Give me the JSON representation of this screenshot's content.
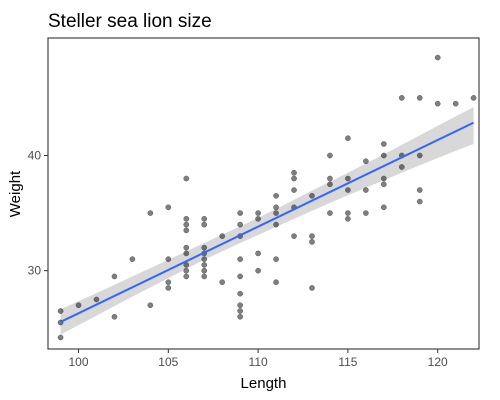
{
  "chart_data": {
    "type": "scatter",
    "title": "Steller sea lion size",
    "xlabel": "Length",
    "ylabel": "Weight",
    "xlim": [
      98.3,
      122.3
    ],
    "ylim": [
      23.2,
      50.2
    ],
    "xticks": [
      100,
      105,
      110,
      115,
      120
    ],
    "yticks": [
      30,
      40
    ],
    "grid": false,
    "points_color": "#000000",
    "points_opacity": 0.5,
    "trend_color": "#3366ff",
    "band_color": "#bebebe",
    "trend": {
      "x": [
        99,
        122
      ],
      "y": [
        25.55,
        42.85
      ]
    },
    "band": {
      "x": [
        99,
        101,
        103,
        105,
        107,
        109,
        110,
        111,
        113,
        115,
        117,
        119,
        121,
        122
      ],
      "lower": [
        24.45,
        26.1,
        27.75,
        29.35,
        30.95,
        32.4,
        33.1,
        33.8,
        35.2,
        36.55,
        37.85,
        39.15,
        40.4,
        41.0
      ],
      "upper": [
        26.65,
        28.05,
        29.5,
        30.95,
        32.4,
        33.85,
        34.6,
        35.35,
        36.95,
        38.5,
        40.1,
        41.75,
        43.4,
        44.2
      ]
    },
    "points": [
      {
        "x": 99,
        "y": 24.2
      },
      {
        "x": 99,
        "y": 25.5
      },
      {
        "x": 99,
        "y": 26.5
      },
      {
        "x": 100,
        "y": 27.0
      },
      {
        "x": 101,
        "y": 27.5
      },
      {
        "x": 102,
        "y": 26.0
      },
      {
        "x": 102,
        "y": 29.5
      },
      {
        "x": 103,
        "y": 31.0
      },
      {
        "x": 104,
        "y": 27.0
      },
      {
        "x": 104,
        "y": 35.0
      },
      {
        "x": 105,
        "y": 28.5
      },
      {
        "x": 105,
        "y": 29.0
      },
      {
        "x": 105,
        "y": 31.0
      },
      {
        "x": 105,
        "y": 35.5
      },
      {
        "x": 106,
        "y": 29.5
      },
      {
        "x": 106,
        "y": 30.0
      },
      {
        "x": 106,
        "y": 30.5
      },
      {
        "x": 106,
        "y": 31.5
      },
      {
        "x": 106,
        "y": 32.0
      },
      {
        "x": 106,
        "y": 33.5
      },
      {
        "x": 106,
        "y": 34.0
      },
      {
        "x": 106,
        "y": 34.5
      },
      {
        "x": 106,
        "y": 38.0
      },
      {
        "x": 107,
        "y": 29.5
      },
      {
        "x": 107,
        "y": 30.0
      },
      {
        "x": 107,
        "y": 30.5
      },
      {
        "x": 107,
        "y": 31.0
      },
      {
        "x": 107,
        "y": 31.5
      },
      {
        "x": 107,
        "y": 32.0
      },
      {
        "x": 107,
        "y": 34.0
      },
      {
        "x": 107,
        "y": 34.5
      },
      {
        "x": 108,
        "y": 29.0
      },
      {
        "x": 108,
        "y": 33.0
      },
      {
        "x": 109,
        "y": 26.0
      },
      {
        "x": 109,
        "y": 26.5
      },
      {
        "x": 109,
        "y": 27.0
      },
      {
        "x": 109,
        "y": 28.0
      },
      {
        "x": 109,
        "y": 29.5
      },
      {
        "x": 109,
        "y": 31.0
      },
      {
        "x": 109,
        "y": 33.0
      },
      {
        "x": 109,
        "y": 34.0
      },
      {
        "x": 109,
        "y": 35.0
      },
      {
        "x": 110,
        "y": 30.0
      },
      {
        "x": 110,
        "y": 31.5
      },
      {
        "x": 110,
        "y": 34.5
      },
      {
        "x": 110,
        "y": 35.0
      },
      {
        "x": 111,
        "y": 29.0
      },
      {
        "x": 111,
        "y": 31.0
      },
      {
        "x": 111,
        "y": 34.0
      },
      {
        "x": 111,
        "y": 35.0
      },
      {
        "x": 111,
        "y": 35.5
      },
      {
        "x": 111,
        "y": 36.5
      },
      {
        "x": 112,
        "y": 33.0
      },
      {
        "x": 112,
        "y": 35.5
      },
      {
        "x": 112,
        "y": 37.0
      },
      {
        "x": 112,
        "y": 38.0
      },
      {
        "x": 112,
        "y": 38.5
      },
      {
        "x": 113,
        "y": 28.5
      },
      {
        "x": 113,
        "y": 32.5
      },
      {
        "x": 113,
        "y": 33.0
      },
      {
        "x": 113,
        "y": 36.5
      },
      {
        "x": 114,
        "y": 35.0
      },
      {
        "x": 114,
        "y": 37.5
      },
      {
        "x": 114,
        "y": 38.0
      },
      {
        "x": 114,
        "y": 40.0
      },
      {
        "x": 115,
        "y": 34.5
      },
      {
        "x": 115,
        "y": 35.0
      },
      {
        "x": 115,
        "y": 37.0
      },
      {
        "x": 115,
        "y": 38.0
      },
      {
        "x": 115,
        "y": 41.5
      },
      {
        "x": 116,
        "y": 35.0
      },
      {
        "x": 116,
        "y": 37.0
      },
      {
        "x": 116,
        "y": 39.5
      },
      {
        "x": 117,
        "y": 35.5
      },
      {
        "x": 117,
        "y": 37.5
      },
      {
        "x": 117,
        "y": 38.0
      },
      {
        "x": 117,
        "y": 40.0
      },
      {
        "x": 117,
        "y": 41.0
      },
      {
        "x": 118,
        "y": 39.0
      },
      {
        "x": 118,
        "y": 40.0
      },
      {
        "x": 118,
        "y": 45.0
      },
      {
        "x": 119,
        "y": 36.0
      },
      {
        "x": 119,
        "y": 37.0
      },
      {
        "x": 119,
        "y": 40.0
      },
      {
        "x": 119,
        "y": 45.0
      },
      {
        "x": 120,
        "y": 44.5
      },
      {
        "x": 120,
        "y": 48.5
      },
      {
        "x": 121,
        "y": 44.5
      },
      {
        "x": 122,
        "y": 45.0
      }
    ]
  }
}
